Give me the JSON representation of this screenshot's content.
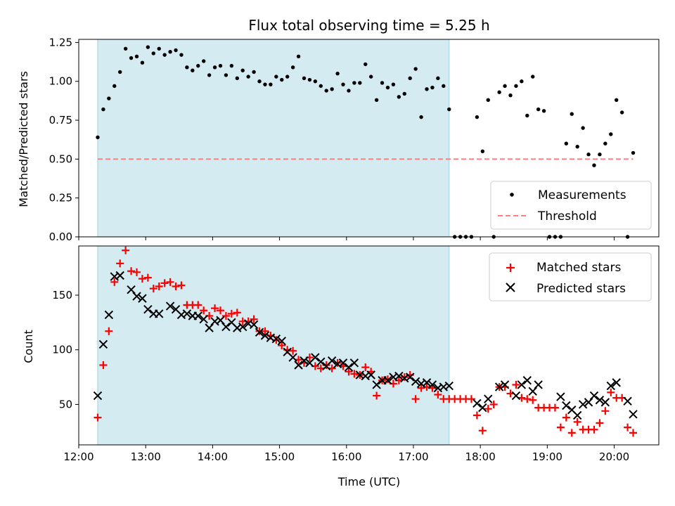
{
  "colors": {
    "observing_window": "#add8e6",
    "measurement": "#000000",
    "threshold": "#ff7f7f",
    "matched": "#ff0000",
    "predicted": "#000000"
  },
  "chart_data": [
    {
      "type": "scatter",
      "title": "Flux total observing time = 5.25 h",
      "xlabel": "",
      "ylabel": "Matched/Predicted stars",
      "xlim": [
        "12:00",
        "20:40"
      ],
      "ylim": [
        0,
        1.27
      ],
      "yticks": [
        "0.00",
        "0.25",
        "0.50",
        "0.75",
        "1.00",
        "1.25"
      ],
      "shaded_span": [
        "12:17",
        "17:32"
      ],
      "legend_position": "lower-right",
      "series": [
        {
          "name": "Measurements",
          "marker": "dot",
          "x": [
            "12:17",
            "12:22",
            "12:27",
            "12:32",
            "12:37",
            "12:42",
            "12:47",
            "12:52",
            "12:57",
            "13:02",
            "13:07",
            "13:12",
            "13:17",
            "13:22",
            "13:27",
            "13:32",
            "13:37",
            "13:42",
            "13:47",
            "13:52",
            "13:57",
            "14:02",
            "14:07",
            "14:12",
            "14:17",
            "14:22",
            "14:27",
            "14:32",
            "14:37",
            "14:42",
            "14:47",
            "14:52",
            "14:57",
            "15:02",
            "15:07",
            "15:12",
            "15:17",
            "15:22",
            "15:27",
            "15:32",
            "15:37",
            "15:42",
            "15:47",
            "15:52",
            "15:57",
            "16:02",
            "16:07",
            "16:12",
            "16:17",
            "16:22",
            "16:27",
            "16:32",
            "16:37",
            "16:42",
            "16:47",
            "16:52",
            "16:57",
            "17:02",
            "17:07",
            "17:12",
            "17:17",
            "17:22",
            "17:27",
            "17:32",
            "17:37",
            "17:42",
            "17:47",
            "17:52",
            "17:57",
            "18:02",
            "18:07",
            "18:12",
            "18:17",
            "18:22",
            "18:27",
            "18:32",
            "18:37",
            "18:42",
            "18:47",
            "18:52",
            "18:57",
            "19:02",
            "19:07",
            "19:12",
            "19:17",
            "19:22",
            "19:27",
            "19:32",
            "19:37",
            "19:42",
            "19:47",
            "19:52",
            "19:57",
            "20:02",
            "20:07",
            "20:12",
            "20:17"
          ],
          "y": [
            0.64,
            0.82,
            0.89,
            0.97,
            1.06,
            1.21,
            1.15,
            1.16,
            1.12,
            1.22,
            1.18,
            1.21,
            1.17,
            1.19,
            1.2,
            1.17,
            1.09,
            1.07,
            1.1,
            1.13,
            1.04,
            1.09,
            1.1,
            1.04,
            1.1,
            1.02,
            1.07,
            1.03,
            1.06,
            1.0,
            0.98,
            0.98,
            1.03,
            1.01,
            1.03,
            1.09,
            1.16,
            1.02,
            1.01,
            1.0,
            0.97,
            0.94,
            0.95,
            1.05,
            0.98,
            0.94,
            0.99,
            0.99,
            1.11,
            1.03,
            0.88,
            0.99,
            0.96,
            0.98,
            0.9,
            0.92,
            1.02,
            1.08,
            0.77,
            0.95,
            0.96,
            1.02,
            0.97,
            0.82,
            0.0,
            0.0,
            0.0,
            0.0,
            0.77,
            0.55,
            0.88,
            0.0,
            0.93,
            0.97,
            0.91,
            0.97,
            1.0,
            0.78,
            1.03,
            0.82,
            0.81,
            0.0,
            0.0,
            0.0,
            0.6,
            0.79,
            0.58,
            0.7,
            0.53,
            0.46,
            0.53,
            0.6,
            0.66,
            0.88,
            0.8,
            0.0,
            0.54
          ]
        },
        {
          "name": "Threshold",
          "marker": "dashed-line",
          "x": [
            "12:17",
            "20:17"
          ],
          "y": [
            0.5,
            0.5
          ]
        }
      ]
    },
    {
      "type": "scatter",
      "title": "",
      "xlabel": "Time (UTC)",
      "ylabel": "Count",
      "xlim": [
        "12:00",
        "20:40"
      ],
      "ylim": [
        13,
        195
      ],
      "yticks": [
        "50",
        "100",
        "150"
      ],
      "xticks": [
        "12:00",
        "13:00",
        "14:00",
        "15:00",
        "16:00",
        "17:00",
        "18:00",
        "19:00",
        "20:00"
      ],
      "shaded_span": [
        "12:17",
        "17:32"
      ],
      "legend_position": "upper-right",
      "series": [
        {
          "name": "Matched stars",
          "marker": "plus",
          "x": [
            "12:17",
            "12:22",
            "12:27",
            "12:32",
            "12:37",
            "12:42",
            "12:47",
            "12:52",
            "12:57",
            "13:02",
            "13:07",
            "13:12",
            "13:17",
            "13:22",
            "13:27",
            "13:32",
            "13:37",
            "13:42",
            "13:47",
            "13:52",
            "13:57",
            "14:02",
            "14:07",
            "14:12",
            "14:17",
            "14:22",
            "14:27",
            "14:32",
            "14:37",
            "14:42",
            "14:47",
            "14:52",
            "14:57",
            "15:02",
            "15:07",
            "15:12",
            "15:17",
            "15:22",
            "15:27",
            "15:32",
            "15:37",
            "15:42",
            "15:47",
            "15:52",
            "15:57",
            "16:02",
            "16:07",
            "16:12",
            "16:17",
            "16:22",
            "16:27",
            "16:32",
            "16:37",
            "16:42",
            "16:47",
            "16:52",
            "16:57",
            "17:02",
            "17:07",
            "17:12",
            "17:17",
            "17:22",
            "17:27",
            "17:32",
            "17:37",
            "17:42",
            "17:47",
            "17:52",
            "17:57",
            "18:02",
            "18:07",
            "18:12",
            "18:17",
            "18:22",
            "18:27",
            "18:32",
            "18:37",
            "18:42",
            "18:47",
            "18:52",
            "18:57",
            "19:02",
            "19:07",
            "19:12",
            "19:17",
            "19:22",
            "19:27",
            "19:32",
            "19:37",
            "19:42",
            "19:47",
            "19:52",
            "19:57",
            "20:02",
            "20:07",
            "20:12",
            "20:17"
          ],
          "y": [
            38,
            86,
            117,
            162,
            179,
            191,
            172,
            171,
            165,
            166,
            156,
            158,
            161,
            162,
            158,
            159,
            141,
            141,
            141,
            136,
            131,
            138,
            136,
            131,
            133,
            134,
            126,
            126,
            128,
            117,
            117,
            113,
            109,
            104,
            100,
            99,
            91,
            88,
            93,
            85,
            83,
            86,
            83,
            88,
            85,
            80,
            78,
            77,
            84,
            80,
            58,
            72,
            73,
            69,
            72,
            75,
            77,
            55,
            65,
            66,
            65,
            59,
            55,
            55,
            55,
            55,
            55,
            55,
            40,
            26,
            46,
            50,
            66,
            66,
            60,
            68,
            56,
            55,
            54,
            47,
            47,
            47,
            47,
            29,
            38,
            24,
            34,
            27,
            27,
            27,
            33,
            44,
            61,
            56,
            56,
            29,
            24
          ]
        },
        {
          "name": "Predicted stars",
          "marker": "x",
          "x": [
            "12:17",
            "12:22",
            "12:27",
            "12:32",
            "12:37",
            "12:47",
            "12:52",
            "12:57",
            "13:02",
            "13:07",
            "13:12",
            "13:22",
            "13:27",
            "13:32",
            "13:37",
            "13:42",
            "13:47",
            "13:52",
            "13:57",
            "14:02",
            "14:07",
            "14:12",
            "14:17",
            "14:22",
            "14:27",
            "14:32",
            "14:37",
            "14:42",
            "14:47",
            "14:52",
            "14:57",
            "15:02",
            "15:07",
            "15:12",
            "15:17",
            "15:22",
            "15:27",
            "15:32",
            "15:37",
            "15:42",
            "15:47",
            "15:52",
            "15:57",
            "16:02",
            "16:07",
            "16:12",
            "16:17",
            "16:22",
            "16:27",
            "16:32",
            "16:37",
            "16:42",
            "16:47",
            "16:52",
            "16:57",
            "17:02",
            "17:07",
            "17:12",
            "17:17",
            "17:22",
            "17:27",
            "17:32",
            "17:57",
            "18:02",
            "18:07",
            "18:17",
            "18:22",
            "18:32",
            "18:37",
            "18:42",
            "18:47",
            "18:52",
            "19:12",
            "19:17",
            "19:22",
            "19:27",
            "19:32",
            "19:37",
            "19:42",
            "19:47",
            "19:52",
            "19:57",
            "20:02",
            "20:12",
            "20:17"
          ],
          "y": [
            58,
            105,
            132,
            167,
            168,
            155,
            149,
            147,
            137,
            133,
            133,
            140,
            137,
            132,
            133,
            131,
            131,
            128,
            120,
            126,
            127,
            121,
            125,
            120,
            121,
            124,
            123,
            116,
            113,
            111,
            110,
            108,
            98,
            93,
            86,
            90,
            88,
            93,
            89,
            85,
            90,
            87,
            88,
            84,
            88,
            77,
            76,
            77,
            68,
            72,
            72,
            75,
            76,
            74,
            75,
            71,
            69,
            70,
            68,
            65,
            66,
            67,
            51,
            47,
            55,
            66,
            68,
            58,
            68,
            72,
            62,
            68,
            57,
            49,
            45,
            40,
            50,
            52,
            58,
            54,
            52,
            67,
            70,
            53,
            41
          ]
        }
      ]
    }
  ]
}
